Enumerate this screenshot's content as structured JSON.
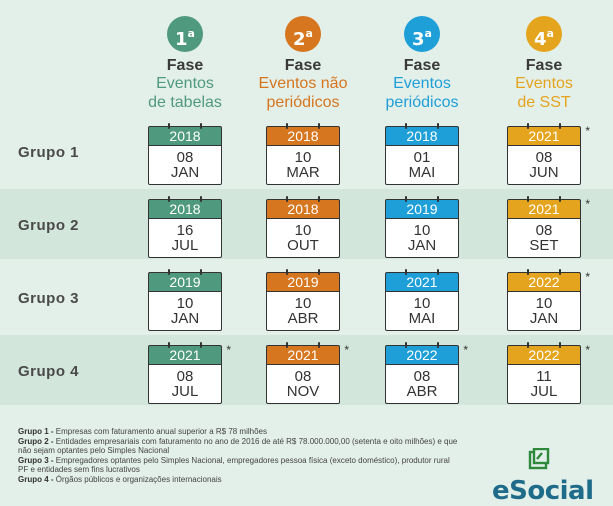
{
  "phases": [
    {
      "ordinal": "1",
      "suffix": "a",
      "title": "Fase",
      "line1": "Eventos",
      "line2": "de tabelas",
      "color": "#4f9a7e"
    },
    {
      "ordinal": "2",
      "suffix": "a",
      "title": "Fase",
      "line1": "Eventos não",
      "line2": "periódicos",
      "color": "#d6761f"
    },
    {
      "ordinal": "3",
      "suffix": "a",
      "title": "Fase",
      "line1": "Eventos",
      "line2": "periódicos",
      "color": "#1e9fd8"
    },
    {
      "ordinal": "4",
      "suffix": "a",
      "title": "Fase",
      "line1": "Eventos",
      "line2": "de SST",
      "color": "#e5a41e"
    }
  ],
  "groups": [
    {
      "label": "Grupo 1",
      "dates": [
        {
          "year": "2018",
          "day": "08",
          "month": "JAN",
          "star": ""
        },
        {
          "year": "2018",
          "day": "10",
          "month": "MAR",
          "star": ""
        },
        {
          "year": "2018",
          "day": "01",
          "month": "MAI",
          "star": ""
        },
        {
          "year": "2021",
          "day": "08",
          "month": "JUN",
          "star": "*"
        }
      ]
    },
    {
      "label": "Grupo 2",
      "dates": [
        {
          "year": "2018",
          "day": "16",
          "month": "JUL",
          "star": ""
        },
        {
          "year": "2018",
          "day": "10",
          "month": "OUT",
          "star": ""
        },
        {
          "year": "2019",
          "day": "10",
          "month": "JAN",
          "star": ""
        },
        {
          "year": "2021",
          "day": "08",
          "month": "SET",
          "star": "*"
        }
      ]
    },
    {
      "label": "Grupo 3",
      "dates": [
        {
          "year": "2019",
          "day": "10",
          "month": "JAN",
          "star": ""
        },
        {
          "year": "2019",
          "day": "10",
          "month": "ABR",
          "star": ""
        },
        {
          "year": "2021",
          "day": "10",
          "month": "MAI",
          "star": ""
        },
        {
          "year": "2022",
          "day": "10",
          "month": "JAN",
          "star": "*"
        }
      ]
    },
    {
      "label": "Grupo 4",
      "dates": [
        {
          "year": "2021",
          "day": "08",
          "month": "JUL",
          "star": "*"
        },
        {
          "year": "2021",
          "day": "08",
          "month": "NOV",
          "star": "*"
        },
        {
          "year": "2022",
          "day": "08",
          "month": "ABR",
          "star": "*"
        },
        {
          "year": "2022",
          "day": "11",
          "month": "JUL",
          "star": "*"
        }
      ]
    }
  ],
  "footnotes": [
    {
      "label": "Grupo 1 -",
      "text": " Empresas com faturamento anual superior a R$ 78 milhões"
    },
    {
      "label": "Grupo 2 -",
      "text": " Entidades empresariais com faturamento no ano de 2016 de até R$ 78.000.000,00 (setenta e oito milhões) e que não sejam optantes pelo Simples Nacional"
    },
    {
      "label": "Grupo 3 -",
      "text": " Empregadores optantes pelo Simples Nacional, empregadores pessoa física (exceto doméstico), produtor rural PF e entidades sem fins lucrativos"
    },
    {
      "label": "Grupo 4 -",
      "text": " Órgãos públicos e organizações internacionais"
    }
  ],
  "logo": {
    "text": "eSocial",
    "color": "#1f6b8a",
    "accent": "#2e8a3a"
  }
}
